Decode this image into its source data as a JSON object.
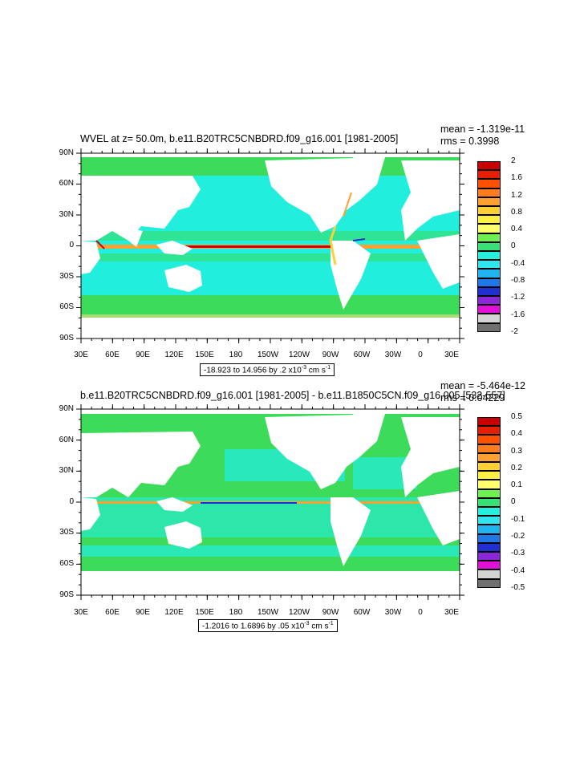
{
  "colors": {
    "ocean_fill": "#22eedd",
    "ocean_band": "#3cdc5a",
    "land": "#ffffff",
    "equator_red": "#cc2200",
    "equator_orange": "#ff9933"
  },
  "panels": [
    {
      "title": "WVEL at z=  50.0m, b.e11.B20TRC5CNBDRD.f09_g16.001 [1981-2005]",
      "mean": "mean = -1.319e-11",
      "rms": "rms = 0.3998",
      "range_prefix": "-18.923 to 14.956 by .2 x10",
      "range_exp": "-3",
      "range_units": " cm s",
      "range_units_exp": "-1",
      "lat_labels": [
        "90N",
        "60N",
        "30N",
        "0",
        "30S",
        "60S",
        "90S"
      ],
      "lon_labels": [
        "30E",
        "60E",
        "90E",
        "120E",
        "150E",
        "180",
        "150W",
        "120W",
        "90W",
        "60W",
        "30W",
        "0",
        "30E"
      ],
      "colorbar": {
        "labels": [
          "2",
          "1.6",
          "1.2",
          "0.8",
          "0.4",
          "0",
          "-0.4",
          "-0.8",
          "-1.2",
          "-1.6",
          "-2"
        ],
        "colors": [
          "#c80000",
          "#e81e00",
          "#ff5000",
          "#ff7d1e",
          "#ffa030",
          "#ffd034",
          "#fff044",
          "#ffff6c",
          "#6ef050",
          "#38e078",
          "#24f0dc",
          "#2ee6f0",
          "#20b4f0",
          "#1e78e6",
          "#2030d0",
          "#8a28d8",
          "#e010d8",
          "#d4d4d4",
          "#707070"
        ]
      }
    },
    {
      "title": "b.e11.B20TRC5CNBDRD.f09_g16.001 [1981-2005] - b.e11.B1850C5CN.f09_g16.005 [532-557]",
      "mean": "mean = -5.464e-12",
      "rms": "rms = 0.04229",
      "range_prefix": "-1.2016 to 1.6896 by .05 x10",
      "range_exp": "-3",
      "range_units": " cm s",
      "range_units_exp": "-1",
      "lat_labels": [
        "90N",
        "60N",
        "30N",
        "0",
        "30S",
        "60S",
        "90S"
      ],
      "lon_labels": [
        "30E",
        "60E",
        "90E",
        "120E",
        "150E",
        "180",
        "150W",
        "120W",
        "90W",
        "60W",
        "30W",
        "0",
        "30E"
      ],
      "colorbar": {
        "labels": [
          "0.5",
          "0.4",
          "0.3",
          "0.2",
          "0.1",
          "0",
          "-0.1",
          "-0.2",
          "-0.3",
          "-0.4",
          "-0.5"
        ],
        "colors": [
          "#c80000",
          "#e81e00",
          "#ff5000",
          "#ff7d1e",
          "#ffa030",
          "#ffd034",
          "#fff044",
          "#ffff6c",
          "#6ef050",
          "#38e078",
          "#24f0dc",
          "#2ee6f0",
          "#20b4f0",
          "#1e78e6",
          "#2030d0",
          "#8a28d8",
          "#e010d8",
          "#d4d4d4",
          "#707070"
        ]
      }
    }
  ]
}
